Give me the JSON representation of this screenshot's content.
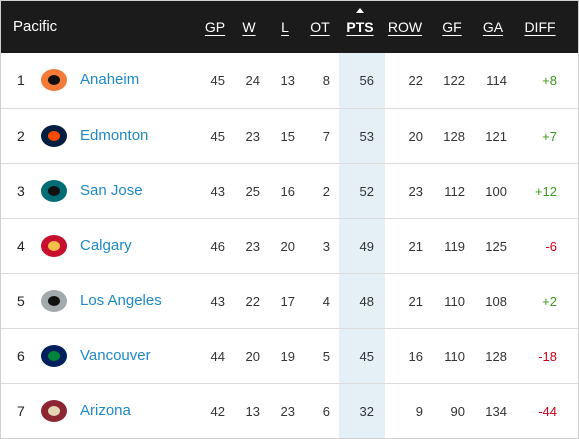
{
  "header": {
    "title": "Pacific",
    "columns": [
      "GP",
      "W",
      "L",
      "OT",
      "PTS",
      "ROW",
      "GF",
      "GA",
      "DIFF"
    ]
  },
  "rows": [
    {
      "rank": 1,
      "team": "Anaheim",
      "stats": [
        45,
        24,
        13,
        8,
        56,
        22,
        122,
        114,
        "+8"
      ]
    },
    {
      "rank": 2,
      "team": "Edmonton",
      "stats": [
        45,
        23,
        15,
        7,
        53,
        20,
        128,
        121,
        "+7"
      ]
    },
    {
      "rank": 3,
      "team": "San Jose",
      "stats": [
        43,
        25,
        16,
        2,
        52,
        23,
        112,
        100,
        "+12"
      ]
    },
    {
      "rank": 4,
      "team": "Calgary",
      "stats": [
        46,
        23,
        20,
        3,
        49,
        21,
        119,
        125,
        "-6"
      ]
    },
    {
      "rank": 5,
      "team": "Los Angeles",
      "stats": [
        43,
        22,
        17,
        4,
        48,
        21,
        110,
        108,
        "+2"
      ]
    },
    {
      "rank": 6,
      "team": "Vancouver",
      "stats": [
        44,
        20,
        19,
        5,
        45,
        16,
        110,
        128,
        "-18"
      ]
    },
    {
      "rank": 7,
      "team": "Arizona",
      "stats": [
        42,
        13,
        23,
        6,
        32,
        9,
        90,
        134,
        "-44"
      ]
    }
  ]
}
